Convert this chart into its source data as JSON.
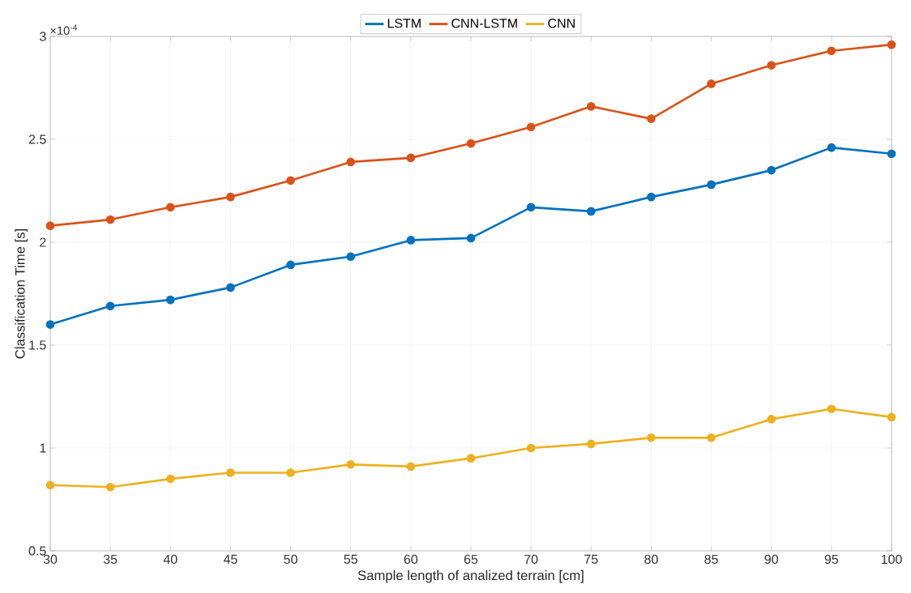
{
  "chart_data": {
    "type": "line",
    "xlabel": "Sample length of analized terrain [cm]",
    "ylabel": "Classification Time [s]",
    "x": [
      30,
      35,
      40,
      45,
      50,
      55,
      60,
      65,
      70,
      75,
      80,
      85,
      90,
      95,
      100
    ],
    "series": [
      {
        "name": "LSTM",
        "color": "#0072bd",
        "values": [
          1.6,
          1.69,
          1.72,
          1.78,
          1.89,
          1.93,
          2.01,
          2.02,
          2.17,
          2.15,
          2.22,
          2.28,
          2.35,
          2.46,
          2.43
        ]
      },
      {
        "name": "CNN-LSTM",
        "color": "#d95319",
        "values": [
          2.08,
          2.11,
          2.17,
          2.22,
          2.3,
          2.39,
          2.41,
          2.48,
          2.56,
          2.66,
          2.6,
          2.77,
          2.86,
          2.93,
          2.96
        ]
      },
      {
        "name": "CNN",
        "color": "#edb120",
        "values": [
          0.82,
          0.81,
          0.85,
          0.88,
          0.88,
          0.92,
          0.91,
          0.95,
          1.0,
          1.02,
          1.05,
          1.05,
          1.14,
          1.19,
          1.15
        ]
      }
    ],
    "xlim": [
      30,
      100
    ],
    "ylim": [
      0.5,
      3
    ],
    "xticks": [
      30,
      35,
      40,
      45,
      50,
      55,
      60,
      65,
      70,
      75,
      80,
      85,
      90,
      95,
      100
    ],
    "yticks": [
      0.5,
      1,
      1.5,
      2,
      2.5,
      3
    ],
    "annotations": [
      "×10$^{-4}$"
    ],
    "grid": true,
    "legend": "top",
    "marker": "circle",
    "line_style": "solid"
  }
}
